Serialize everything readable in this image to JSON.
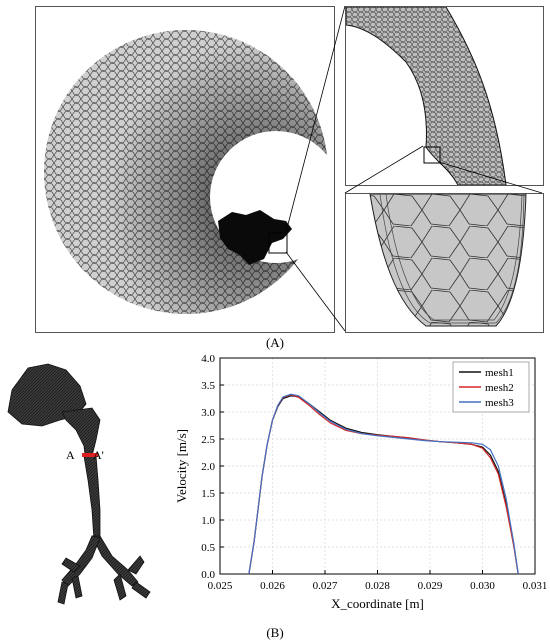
{
  "figure": {
    "label_a": "(A)",
    "label_b": "(B)"
  },
  "airway": {
    "label_left": "A",
    "label_right": "A'",
    "colors": {
      "mesh": "#1a1a1a",
      "section_marker": "#e02020"
    }
  },
  "chart_data": {
    "type": "line",
    "xlabel": "X_coordinate [m]",
    "ylabel": "Velocity [m/s]",
    "xlim": [
      0.025,
      0.031
    ],
    "ylim": [
      0.0,
      4.0
    ],
    "xticks": [
      "0.025",
      "0.026",
      "0.027",
      "0.028",
      "0.029",
      "0.030",
      "0.031"
    ],
    "yticks": [
      "0.0",
      "0.5",
      "1.0",
      "1.5",
      "2.0",
      "2.5",
      "3.0",
      "3.5",
      "4.0"
    ],
    "grid": true,
    "legend_position": "top-right",
    "series": [
      {
        "name": "mesh1",
        "color": "#111111",
        "x": [
          0.02555,
          0.02565,
          0.0258,
          0.0259,
          0.026,
          0.0261,
          0.0262,
          0.02635,
          0.0265,
          0.0267,
          0.0269,
          0.0271,
          0.0274,
          0.0277,
          0.028,
          0.0283,
          0.0286,
          0.0289,
          0.0292,
          0.0295,
          0.0298,
          0.03,
          0.03015,
          0.0303,
          0.03045,
          0.0306,
          0.03068
        ],
        "y": [
          0.0,
          0.6,
          1.8,
          2.4,
          2.85,
          3.1,
          3.25,
          3.3,
          3.28,
          3.15,
          3.0,
          2.85,
          2.7,
          2.62,
          2.58,
          2.55,
          2.52,
          2.48,
          2.45,
          2.43,
          2.4,
          2.35,
          2.2,
          1.9,
          1.3,
          0.5,
          0.0
        ]
      },
      {
        "name": "mesh2",
        "color": "#d62728",
        "x": [
          0.02555,
          0.02565,
          0.0258,
          0.0259,
          0.026,
          0.0261,
          0.0262,
          0.02635,
          0.0265,
          0.0267,
          0.0269,
          0.0271,
          0.0274,
          0.0277,
          0.028,
          0.0283,
          0.0286,
          0.0289,
          0.0292,
          0.0295,
          0.0298,
          0.03,
          0.03015,
          0.0303,
          0.03045,
          0.0306,
          0.03068
        ],
        "y": [
          0.0,
          0.6,
          1.8,
          2.4,
          2.85,
          3.12,
          3.27,
          3.32,
          3.27,
          3.12,
          2.95,
          2.8,
          2.66,
          2.6,
          2.57,
          2.55,
          2.52,
          2.48,
          2.45,
          2.43,
          2.4,
          2.33,
          2.15,
          1.85,
          1.25,
          0.5,
          0.0
        ]
      },
      {
        "name": "mesh3",
        "color": "#4472c4",
        "x": [
          0.02555,
          0.02565,
          0.0258,
          0.0259,
          0.026,
          0.0261,
          0.0262,
          0.02635,
          0.0265,
          0.0267,
          0.0269,
          0.0271,
          0.0274,
          0.0277,
          0.028,
          0.0283,
          0.0286,
          0.0289,
          0.0292,
          0.0295,
          0.0298,
          0.03,
          0.03015,
          0.0303,
          0.03045,
          0.0306,
          0.03068
        ],
        "y": [
          0.0,
          0.6,
          1.8,
          2.4,
          2.85,
          3.12,
          3.28,
          3.33,
          3.3,
          3.15,
          2.98,
          2.83,
          2.68,
          2.6,
          2.56,
          2.53,
          2.5,
          2.47,
          2.45,
          2.44,
          2.43,
          2.4,
          2.3,
          2.0,
          1.4,
          0.55,
          0.0
        ]
      }
    ]
  }
}
